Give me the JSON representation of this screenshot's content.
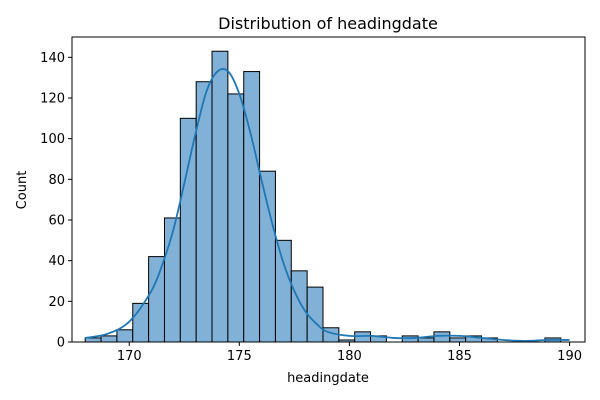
{
  "chart_data": {
    "type": "bar",
    "subtype": "histogram",
    "title": "Distribution of headingdate",
    "xlabel": "headingdate",
    "ylabel": "Count",
    "xlim": [
      167.4,
      190.7
    ],
    "ylim": [
      0,
      150
    ],
    "xticks": [
      170,
      175,
      180,
      185,
      190
    ],
    "yticks": [
      0,
      20,
      40,
      60,
      80,
      100,
      120,
      140
    ],
    "bin_start": 168.0,
    "bin_width": 0.72,
    "counts": [
      2,
      3,
      6,
      19,
      42,
      61,
      110,
      128,
      143,
      122,
      133,
      84,
      50,
      35,
      27,
      7,
      1,
      5,
      3,
      0,
      3,
      2,
      5,
      2,
      3,
      2,
      0,
      0,
      0,
      2
    ],
    "kde": {
      "x": [
        168,
        169,
        170,
        171,
        171.5,
        172,
        172.5,
        173,
        173.5,
        174,
        174.5,
        175,
        175.5,
        176,
        176.5,
        177,
        177.5,
        178,
        178.5,
        179,
        180,
        181,
        182,
        183,
        184,
        185,
        186,
        187,
        188,
        189,
        190
      ],
      "y": [
        2,
        4,
        10,
        25,
        38,
        55,
        78,
        102,
        123,
        133,
        133,
        122,
        103,
        80,
        58,
        39,
        25,
        15,
        9,
        5,
        3,
        3,
        2,
        2,
        3,
        3,
        2,
        1,
        0.5,
        1,
        1
      ]
    },
    "grid": false,
    "colors": {
      "bar_fill": "#82b1d7",
      "bar_edge": "#000000",
      "kde_line": "#1f77b4"
    }
  }
}
